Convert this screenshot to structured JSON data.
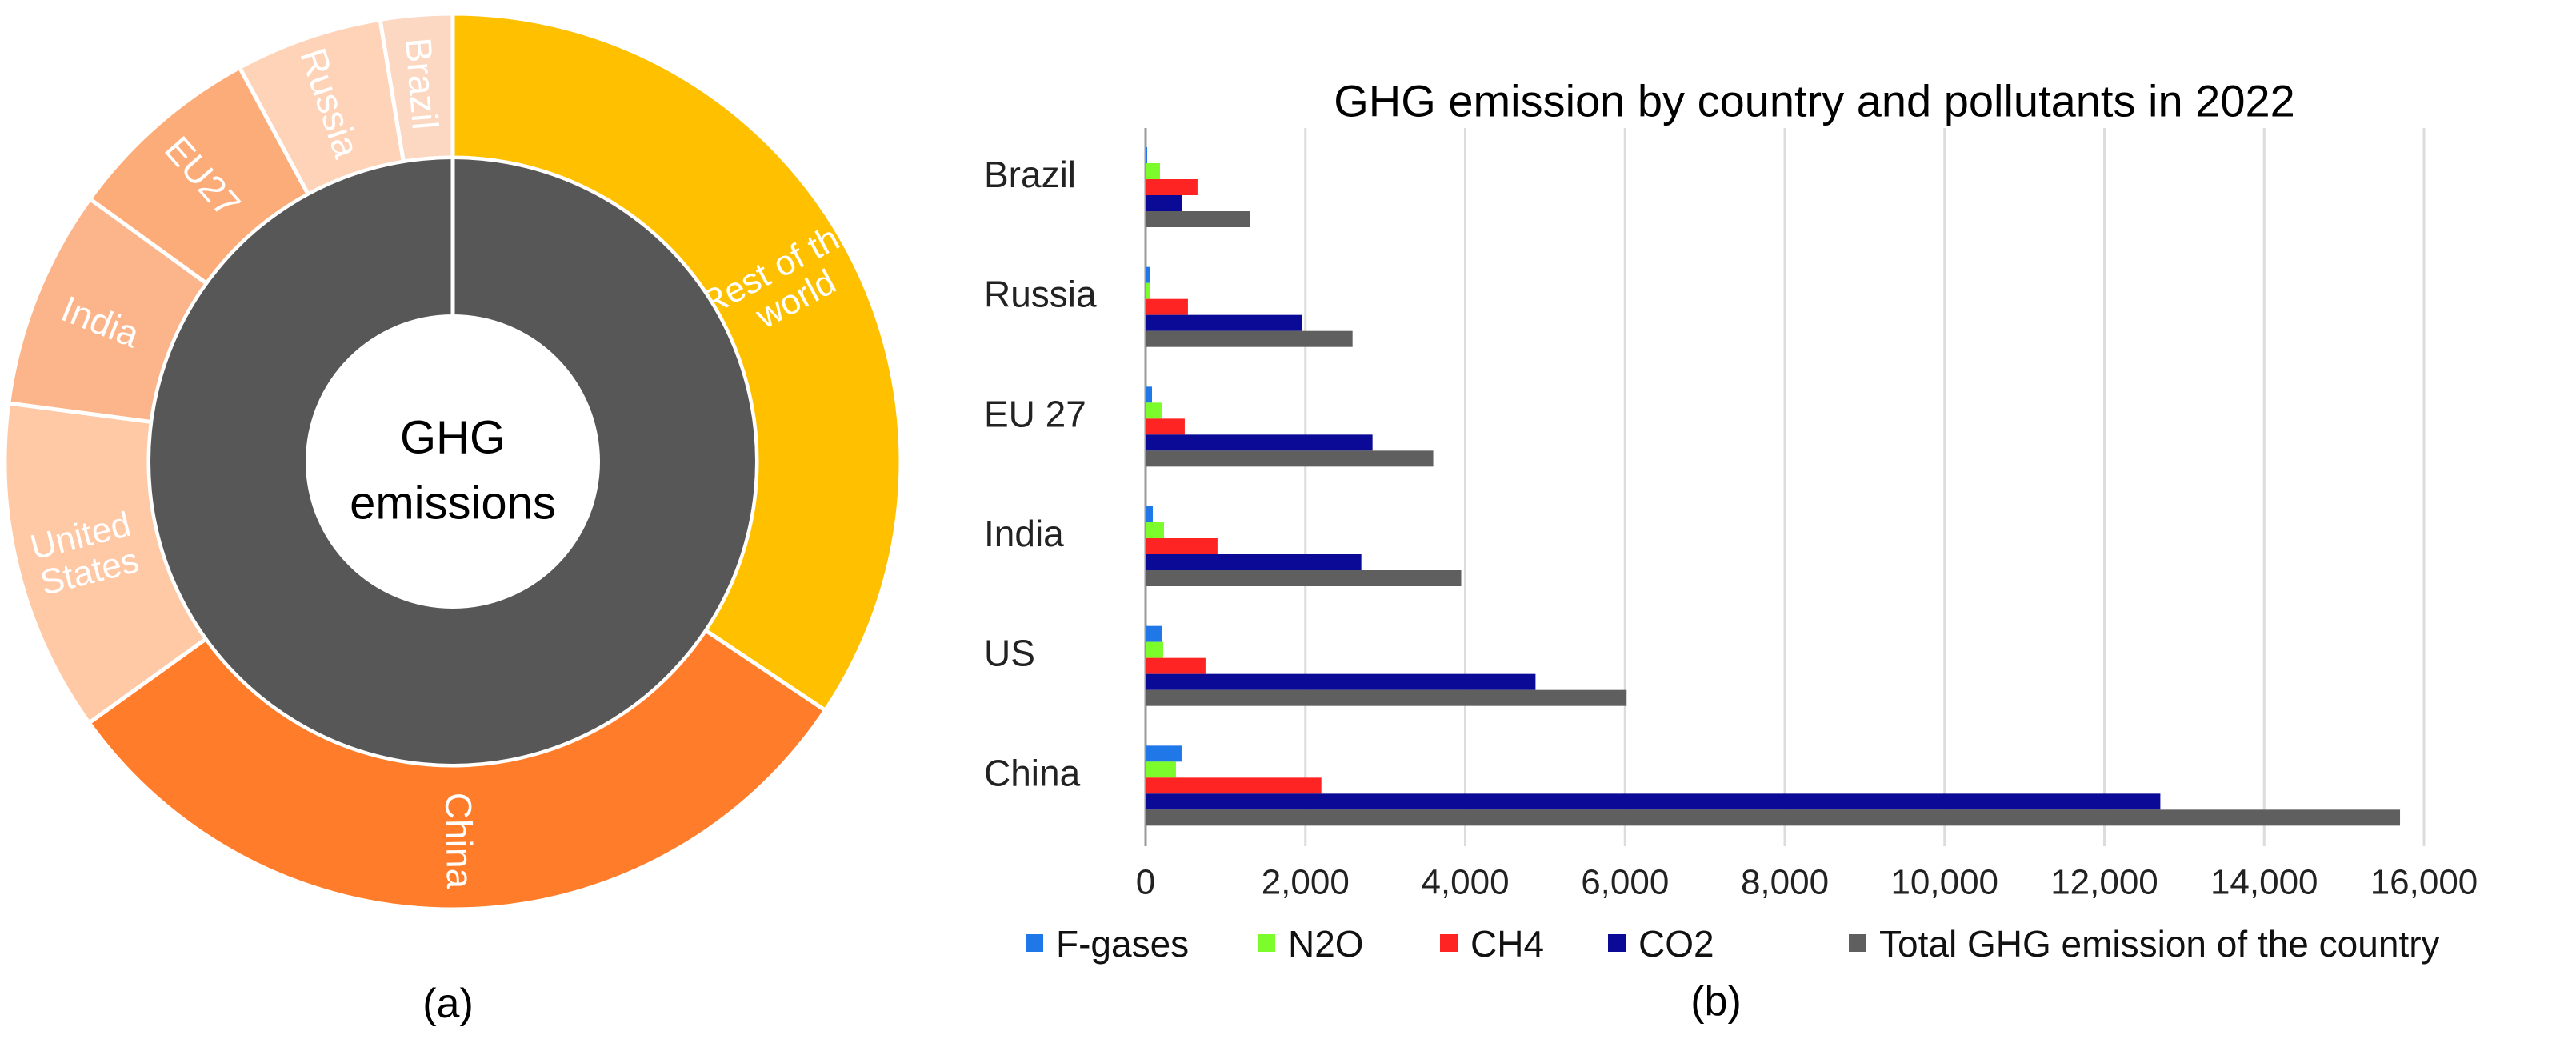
{
  "panel_a": {
    "caption": "(a)",
    "center_label_line1": "GHG",
    "center_label_line2": "emissions",
    "chart_data": {
      "type": "pie",
      "inner_ring": {
        "label": "GHG emissions",
        "color": "#575757"
      },
      "outer_ring": [
        {
          "label": "Rest of the world",
          "lines": [
            "Rest of the",
            "world"
          ],
          "value": 31.8,
          "color": "#FFC000"
        },
        {
          "label": "China",
          "lines": [
            "China"
          ],
          "value": 28.4,
          "color": "#FF7D2A"
        },
        {
          "label": "United States",
          "lines": [
            "United",
            "States"
          ],
          "value": 11.1,
          "color": "#FFC9A6"
        },
        {
          "label": "India",
          "lines": [
            "India"
          ],
          "value": 7.3,
          "color": "#FCB58A"
        },
        {
          "label": "EU27",
          "lines": [
            "EU27"
          ],
          "value": 6.6,
          "color": "#FCAC78"
        },
        {
          "label": "Russia",
          "lines": [
            "Russia"
          ],
          "value": 4.9,
          "color": "#FFD3B8"
        },
        {
          "label": "Brazil",
          "lines": [
            "Brazil"
          ],
          "value": 2.4,
          "color": "#FCD8C2"
        }
      ]
    }
  },
  "panel_b": {
    "caption": "(b)",
    "chart_data": {
      "type": "bar",
      "orientation": "horizontal",
      "title": "GHG emission by country and pollutants in 2022",
      "categories": [
        "Brazil",
        "Russia",
        "EU 27",
        "India",
        "US",
        "China"
      ],
      "series": [
        {
          "name": "F-gases",
          "color": "#1F77E8",
          "values": [
            20,
            60,
            80,
            90,
            200,
            450
          ]
        },
        {
          "name": "N2O",
          "color": "#7CFC2B",
          "values": [
            180,
            60,
            200,
            230,
            220,
            380
          ]
        },
        {
          "name": "CH4",
          "color": "#FF2424",
          "values": [
            650,
            530,
            490,
            900,
            750,
            2200
          ]
        },
        {
          "name": "CO2",
          "color": "#0A0A96",
          "values": [
            460,
            1960,
            2840,
            2700,
            4880,
            12700
          ]
        },
        {
          "name": "Total GHG emission of the country",
          "color": "#5F5F5F",
          "values": [
            1310,
            2590,
            3600,
            3950,
            6020,
            15700
          ]
        }
      ],
      "xlim": [
        0,
        16000
      ],
      "xticks": [
        "0",
        "2,000",
        "4,000",
        "6,000",
        "8,000",
        "10,000",
        "12,000",
        "14,000",
        "16,000"
      ],
      "xlabel": "",
      "ylabel": "",
      "grid": true,
      "legend": "bottom"
    }
  }
}
